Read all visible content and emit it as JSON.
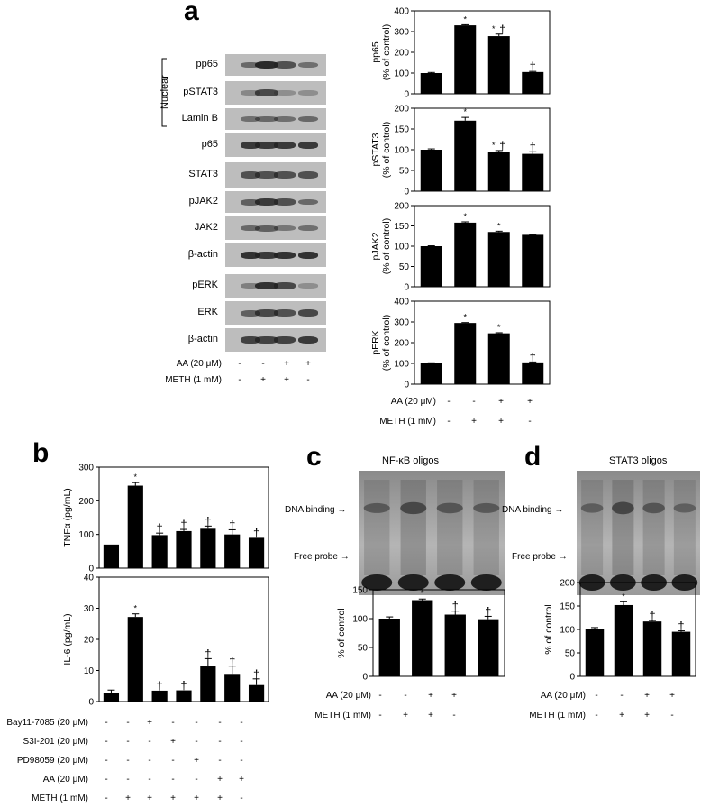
{
  "panels": {
    "a": "a",
    "b": "b",
    "c": "c",
    "d": "d"
  },
  "panel_a": {
    "nuclear_label": "Nuclear",
    "blot_labels": [
      "pp65",
      "pSTAT3",
      "Lamin B",
      "p65",
      "STAT3",
      "pJAK2",
      "JAK2",
      "β-actin",
      "pERK",
      "ERK",
      "β-actin"
    ],
    "treatments": [
      {
        "label": "AA (20 μM)",
        "signs": [
          "-",
          "-",
          "+",
          "+"
        ]
      },
      {
        "label": "METH (1 mM)",
        "signs": [
          "-",
          "+",
          "+",
          "-"
        ]
      }
    ]
  },
  "gel_c": {
    "title": "NF-κB oligos",
    "dna_binding": "DNA binding",
    "free_probe": "Free probe",
    "treatments": [
      {
        "label": "AA (20 μM)",
        "signs": [
          "-",
          "-",
          "+",
          "+"
        ]
      },
      {
        "label": "METH (1 mM)",
        "signs": [
          "-",
          "+",
          "+",
          "-"
        ]
      }
    ]
  },
  "gel_d": {
    "title": "STAT3 oligos",
    "dna_binding": "DNA binding",
    "free_probe": "Free probe",
    "treatments": [
      {
        "label": "AA (20 μM)",
        "signs": [
          "-",
          "-",
          "+",
          "+"
        ]
      },
      {
        "label": "METH (1 mM)",
        "signs": [
          "-",
          "+",
          "+",
          "-"
        ]
      }
    ]
  },
  "panel_b": {
    "treatments": [
      {
        "label": "Bay11-7085 (20 μM)",
        "signs": [
          "-",
          "-",
          "+",
          "-",
          "-",
          "-",
          "-"
        ]
      },
      {
        "label": "S3I-201 (20 μM)",
        "signs": [
          "-",
          "-",
          "-",
          "+",
          "-",
          "-",
          "-"
        ]
      },
      {
        "label": "PD98059 (20 μM)",
        "signs": [
          "-",
          "-",
          "-",
          "-",
          "+",
          "-",
          "-"
        ]
      },
      {
        "label": "AA (20 μM)",
        "signs": [
          "-",
          "-",
          "-",
          "-",
          "-",
          "+",
          "+"
        ]
      },
      {
        "label": "METH (1 mM)",
        "signs": [
          "-",
          "+",
          "+",
          "+",
          "+",
          "+",
          "-"
        ]
      }
    ]
  },
  "chart_data": [
    {
      "id": "a_pp65",
      "type": "bar",
      "categories": [
        "1",
        "2",
        "3",
        "4"
      ],
      "values": [
        100,
        330,
        278,
        105
      ],
      "errors": [
        3,
        3,
        10,
        3
      ],
      "marks": [
        "",
        "*",
        "*†",
        "†"
      ],
      "ylabel": "pp65\n(% of control)",
      "ylim": [
        0,
        400
      ],
      "yticks": [
        0,
        100,
        200,
        300,
        400
      ]
    },
    {
      "id": "a_pstat3",
      "type": "bar",
      "categories": [
        "1",
        "2",
        "3",
        "4"
      ],
      "values": [
        100,
        170,
        95,
        90
      ],
      "errors": [
        2,
        8,
        3,
        5
      ],
      "marks": [
        "",
        "*",
        "*†",
        "†"
      ],
      "ylabel": "pSTAT3\n(% of control)",
      "ylim": [
        0,
        200
      ],
      "yticks": [
        0,
        50,
        100,
        150,
        200
      ]
    },
    {
      "id": "a_pjak2",
      "type": "bar",
      "categories": [
        "1",
        "2",
        "3",
        "4"
      ],
      "values": [
        100,
        158,
        135,
        128
      ],
      "errors": [
        1,
        2,
        2,
        1
      ],
      "marks": [
        "",
        "*",
        "*",
        ""
      ],
      "ylabel": "pJAK2\n(% of control)",
      "ylim": [
        0,
        200
      ],
      "yticks": [
        0,
        50,
        100,
        150,
        200
      ]
    },
    {
      "id": "a_perk",
      "type": "bar",
      "categories": [
        "1",
        "2",
        "3",
        "4"
      ],
      "values": [
        100,
        295,
        245,
        105
      ],
      "errors": [
        3,
        2,
        3,
        2
      ],
      "marks": [
        "",
        "*",
        "*",
        "†"
      ],
      "ylabel": "pERK\n(% of control)",
      "ylim": [
        0,
        400
      ],
      "yticks": [
        0,
        100,
        200,
        300,
        400
      ]
    },
    {
      "id": "b_tnfa",
      "type": "bar",
      "categories": [
        "1",
        "2",
        "3",
        "4",
        "5",
        "6",
        "7"
      ],
      "values": [
        70,
        245,
        98,
        110,
        117,
        100,
        90
      ],
      "errors": [
        0,
        9,
        6,
        5,
        8,
        14,
        0
      ],
      "marks": [
        "",
        "*",
        "†",
        "†",
        "†",
        "†",
        "†"
      ],
      "ylabel": "TNFα (pg/mL)",
      "ylim": [
        0,
        300
      ],
      "yticks": [
        0,
        100,
        200,
        300
      ]
    },
    {
      "id": "b_il6",
      "type": "bar",
      "categories": [
        "1",
        "2",
        "3",
        "4",
        "5",
        "6",
        "7"
      ],
      "values": [
        2.7,
        27.2,
        3.5,
        3.6,
        11.3,
        8.9,
        5.3
      ],
      "errors": [
        1,
        1,
        0,
        0,
        2.5,
        2.5,
        2
      ],
      "marks": [
        "",
        "*",
        "†",
        "†",
        "†",
        "†",
        "†"
      ],
      "ylabel": "IL-6 (pg/mL)",
      "ylim": [
        0,
        40
      ],
      "yticks": [
        0,
        10,
        20,
        30,
        40
      ]
    },
    {
      "id": "c_nfkb",
      "type": "bar",
      "categories": [
        "1",
        "2",
        "3",
        "4"
      ],
      "values": [
        100,
        132,
        107,
        99
      ],
      "errors": [
        3,
        2,
        6,
        5
      ],
      "marks": [
        "",
        "*",
        "†",
        "†"
      ],
      "ylabel": "% of control",
      "ylim": [
        0,
        150
      ],
      "yticks": [
        0,
        50,
        100,
        150
      ]
    },
    {
      "id": "d_stat3",
      "type": "bar",
      "categories": [
        "1",
        "2",
        "3",
        "4"
      ],
      "values": [
        100,
        152,
        117,
        95
      ],
      "errors": [
        4,
        7,
        2,
        2
      ],
      "marks": [
        "",
        "*",
        "†",
        "†"
      ],
      "ylabel": "% of control",
      "ylim": [
        0,
        200
      ],
      "yticks": [
        0,
        50,
        100,
        150,
        200
      ]
    }
  ]
}
